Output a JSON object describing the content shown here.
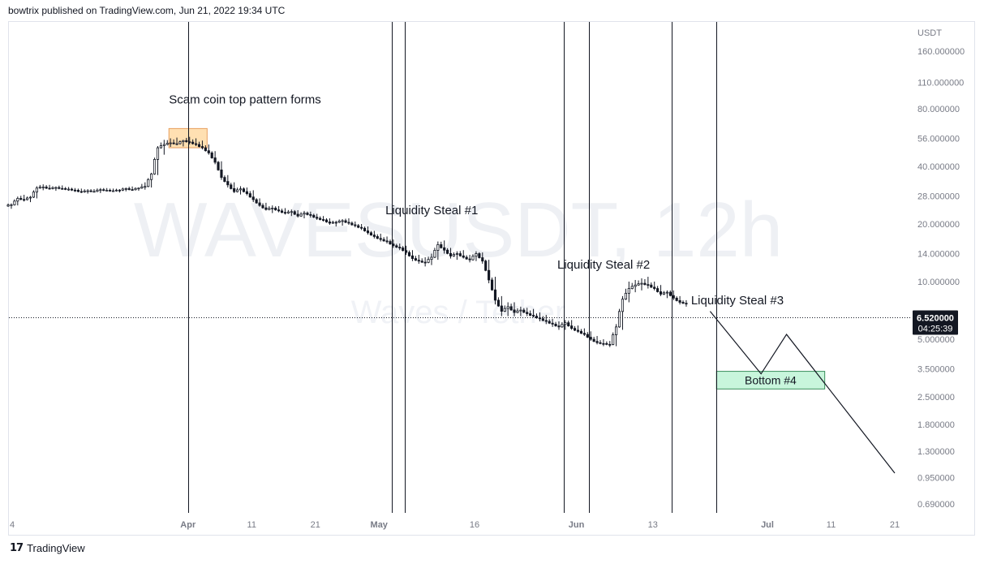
{
  "header": {
    "published": "bowtrix published on TradingView.com, Jun 21, 2022 19:34 UTC"
  },
  "footer": {
    "brand": "TradingView",
    "logo_icon": "tradingview-logo-icon"
  },
  "chart_data": {
    "type": "candlestick",
    "symbol_watermark": "WAVESUSDT, 12h",
    "sub_watermark": "Waves / Tether",
    "y_scale": "log",
    "currency_label": "USDT",
    "y_ticks": [
      {
        "label": "160.000000",
        "value": 160
      },
      {
        "label": "110.000000",
        "value": 110
      },
      {
        "label": "80.000000",
        "value": 80
      },
      {
        "label": "56.000000",
        "value": 56
      },
      {
        "label": "40.000000",
        "value": 40
      },
      {
        "label": "28.000000",
        "value": 28
      },
      {
        "label": "20.000000",
        "value": 20
      },
      {
        "label": "14.000000",
        "value": 14
      },
      {
        "label": "10.000000",
        "value": 10
      },
      {
        "label": "5.000000",
        "value": 5
      },
      {
        "label": "3.500000",
        "value": 3.5
      },
      {
        "label": "2.500000",
        "value": 2.5
      },
      {
        "label": "1.800000",
        "value": 1.8
      },
      {
        "label": "1.300000",
        "value": 1.3
      },
      {
        "label": "0.950000",
        "value": 0.95
      },
      {
        "label": "0.690000",
        "value": 0.69
      }
    ],
    "x_ticks": [
      {
        "label": "4",
        "date": "2022-03-04",
        "bold": false
      },
      {
        "label": "Apr",
        "date": "2022-04-01",
        "bold": true
      },
      {
        "label": "11",
        "date": "2022-04-11",
        "bold": false
      },
      {
        "label": "21",
        "date": "2022-04-21",
        "bold": false
      },
      {
        "label": "May",
        "date": "2022-05-01",
        "bold": true
      },
      {
        "label": "16",
        "date": "2022-05-16",
        "bold": false
      },
      {
        "label": "Jun",
        "date": "2022-06-01",
        "bold": true
      },
      {
        "label": "13",
        "date": "2022-06-13",
        "bold": false
      },
      {
        "label": "Jul",
        "date": "2022-07-01",
        "bold": true
      },
      {
        "label": "11",
        "date": "2022-07-11",
        "bold": false
      },
      {
        "label": "21",
        "date": "2022-07-21",
        "bold": false
      }
    ],
    "x_range": [
      "2022-03-04",
      "2022-07-21"
    ],
    "y_range": [
      0.62,
      200
    ],
    "last_price": {
      "label": "6.520000",
      "value": 6.52,
      "countdown": "04:25:39"
    },
    "vertical_markers": [
      "2022-04-01",
      "2022-05-03",
      "2022-05-05",
      "2022-05-30",
      "2022-06-03",
      "2022-06-16",
      "2022-06-23"
    ],
    "annotations": [
      {
        "text": "Scam coin top pattern forms",
        "date": "2022-03-29",
        "value": 85
      },
      {
        "text": "Liquidity Steal #1",
        "date": "2022-05-02",
        "value": 22.5
      },
      {
        "text": "Liquidity Steal #2",
        "date": "2022-05-29",
        "value": 11.7
      },
      {
        "text": "Liquidity Steal #3",
        "date": "2022-06-19",
        "value": 7.6
      }
    ],
    "zones": [
      {
        "label": "",
        "from": "2022-03-29",
        "to": "2022-04-04",
        "top": 63,
        "bottom": 50,
        "color": "#ffe0b2",
        "border": "#e8a060"
      },
      {
        "label": "Bottom #4",
        "from": "2022-06-23",
        "to": "2022-07-10",
        "top": 3.4,
        "bottom": 2.75,
        "color": "#c8f5dc",
        "border": "#3a8f5c"
      }
    ],
    "projection_path": [
      {
        "date": "2022-06-22",
        "value": 7.0
      },
      {
        "date": "2022-06-30",
        "value": 3.3
      },
      {
        "date": "2022-07-04",
        "value": 5.3
      },
      {
        "date": "2022-07-21",
        "value": 1.0
      }
    ],
    "candles": [
      {
        "d": "2022-03-04",
        "o": 24.8,
        "h": 25.6,
        "l": 24.0,
        "c": 25.2
      },
      {
        "d": "2022-03-05",
        "o": 25.2,
        "h": 27.8,
        "l": 25.0,
        "c": 27.2
      },
      {
        "d": "2022-03-06",
        "o": 27.2,
        "h": 28.4,
        "l": 26.2,
        "c": 26.8
      },
      {
        "d": "2022-03-07",
        "o": 26.8,
        "h": 28.0,
        "l": 26.0,
        "c": 27.6
      },
      {
        "d": "2022-03-08",
        "o": 27.6,
        "h": 31.5,
        "l": 27.2,
        "c": 30.8
      },
      {
        "d": "2022-03-09",
        "o": 30.8,
        "h": 32.2,
        "l": 30.0,
        "c": 31.2
      },
      {
        "d": "2022-03-10",
        "o": 31.2,
        "h": 32.0,
        "l": 30.2,
        "c": 30.6
      },
      {
        "d": "2022-03-11",
        "o": 30.6,
        "h": 31.4,
        "l": 29.8,
        "c": 31.0
      },
      {
        "d": "2022-03-12",
        "o": 31.0,
        "h": 31.8,
        "l": 30.2,
        "c": 30.6
      },
      {
        "d": "2022-03-13",
        "o": 30.6,
        "h": 31.2,
        "l": 29.8,
        "c": 30.4
      },
      {
        "d": "2022-03-14",
        "o": 30.4,
        "h": 30.8,
        "l": 29.4,
        "c": 30.0
      },
      {
        "d": "2022-03-15",
        "o": 30.0,
        "h": 30.6,
        "l": 29.0,
        "c": 29.4
      },
      {
        "d": "2022-03-16",
        "o": 29.4,
        "h": 30.4,
        "l": 28.8,
        "c": 29.8
      },
      {
        "d": "2022-03-17",
        "o": 29.8,
        "h": 30.4,
        "l": 29.2,
        "c": 29.6
      },
      {
        "d": "2022-03-18",
        "o": 29.6,
        "h": 30.8,
        "l": 29.0,
        "c": 30.2
      },
      {
        "d": "2022-03-19",
        "o": 30.2,
        "h": 30.8,
        "l": 29.6,
        "c": 30.0
      },
      {
        "d": "2022-03-20",
        "o": 30.0,
        "h": 30.6,
        "l": 29.4,
        "c": 29.8
      },
      {
        "d": "2022-03-21",
        "o": 29.8,
        "h": 30.4,
        "l": 29.2,
        "c": 30.0
      },
      {
        "d": "2022-03-22",
        "o": 30.0,
        "h": 31.0,
        "l": 29.6,
        "c": 30.6
      },
      {
        "d": "2022-03-23",
        "o": 30.6,
        "h": 31.4,
        "l": 30.0,
        "c": 30.2
      },
      {
        "d": "2022-03-24",
        "o": 30.2,
        "h": 31.0,
        "l": 29.8,
        "c": 30.8
      },
      {
        "d": "2022-03-25",
        "o": 30.8,
        "h": 33.0,
        "l": 30.2,
        "c": 31.4
      },
      {
        "d": "2022-03-26",
        "o": 31.4,
        "h": 37.0,
        "l": 31.0,
        "c": 36.5
      },
      {
        "d": "2022-03-27",
        "o": 36.5,
        "h": 51.0,
        "l": 36.0,
        "c": 50.0
      },
      {
        "d": "2022-03-28",
        "o": 50.0,
        "h": 55.0,
        "l": 46.0,
        "c": 52.0
      },
      {
        "d": "2022-03-29",
        "o": 52.0,
        "h": 56.0,
        "l": 50.5,
        "c": 53.0
      },
      {
        "d": "2022-03-30",
        "o": 53.0,
        "h": 56.5,
        "l": 51.5,
        "c": 52.5
      },
      {
        "d": "2022-03-31",
        "o": 52.5,
        "h": 55.0,
        "l": 50.8,
        "c": 54.5
      },
      {
        "d": "2022-04-01",
        "o": 54.5,
        "h": 57.0,
        "l": 52.0,
        "c": 53.5
      },
      {
        "d": "2022-04-02",
        "o": 53.5,
        "h": 56.0,
        "l": 51.0,
        "c": 52.0
      },
      {
        "d": "2022-04-03",
        "o": 52.0,
        "h": 54.5,
        "l": 49.0,
        "c": 50.0
      },
      {
        "d": "2022-04-04",
        "o": 50.0,
        "h": 52.0,
        "l": 46.0,
        "c": 47.0
      },
      {
        "d": "2022-04-05",
        "o": 47.0,
        "h": 48.0,
        "l": 41.0,
        "c": 42.0
      },
      {
        "d": "2022-04-06",
        "o": 42.0,
        "h": 42.5,
        "l": 34.0,
        "c": 35.0
      },
      {
        "d": "2022-04-07",
        "o": 35.0,
        "h": 36.0,
        "l": 31.0,
        "c": 32.0
      },
      {
        "d": "2022-04-08",
        "o": 32.0,
        "h": 33.0,
        "l": 29.0,
        "c": 29.5
      },
      {
        "d": "2022-04-09",
        "o": 29.5,
        "h": 31.5,
        "l": 28.5,
        "c": 30.5
      },
      {
        "d": "2022-04-10",
        "o": 30.5,
        "h": 31.0,
        "l": 28.2,
        "c": 28.8
      },
      {
        "d": "2022-04-11",
        "o": 28.8,
        "h": 30.0,
        "l": 26.0,
        "c": 26.8
      },
      {
        "d": "2022-04-12",
        "o": 26.8,
        "h": 27.2,
        "l": 24.6,
        "c": 25.0
      },
      {
        "d": "2022-04-13",
        "o": 25.0,
        "h": 25.8,
        "l": 23.5,
        "c": 23.8
      },
      {
        "d": "2022-04-14",
        "o": 23.8,
        "h": 25.0,
        "l": 22.8,
        "c": 24.2
      },
      {
        "d": "2022-04-15",
        "o": 24.2,
        "h": 24.8,
        "l": 23.0,
        "c": 23.4
      },
      {
        "d": "2022-04-16",
        "o": 23.4,
        "h": 24.2,
        "l": 22.4,
        "c": 22.8
      },
      {
        "d": "2022-04-17",
        "o": 22.8,
        "h": 23.8,
        "l": 22.0,
        "c": 23.2
      },
      {
        "d": "2022-04-18",
        "o": 23.2,
        "h": 23.6,
        "l": 21.6,
        "c": 22.0
      },
      {
        "d": "2022-04-19",
        "o": 22.0,
        "h": 23.4,
        "l": 21.4,
        "c": 22.8
      },
      {
        "d": "2022-04-20",
        "o": 22.8,
        "h": 23.2,
        "l": 21.6,
        "c": 22.2
      },
      {
        "d": "2022-04-21",
        "o": 22.2,
        "h": 22.6,
        "l": 21.0,
        "c": 21.4
      },
      {
        "d": "2022-04-22",
        "o": 21.4,
        "h": 22.0,
        "l": 20.6,
        "c": 21.0
      },
      {
        "d": "2022-04-23",
        "o": 21.0,
        "h": 21.4,
        "l": 19.8,
        "c": 20.2
      },
      {
        "d": "2022-04-24",
        "o": 20.2,
        "h": 20.8,
        "l": 19.4,
        "c": 20.4
      },
      {
        "d": "2022-04-25",
        "o": 20.4,
        "h": 21.2,
        "l": 19.6,
        "c": 20.8
      },
      {
        "d": "2022-04-26",
        "o": 20.8,
        "h": 21.4,
        "l": 19.8,
        "c": 20.2
      },
      {
        "d": "2022-04-27",
        "o": 20.2,
        "h": 20.6,
        "l": 19.2,
        "c": 19.6
      },
      {
        "d": "2022-04-28",
        "o": 19.6,
        "h": 20.0,
        "l": 18.6,
        "c": 19.0
      },
      {
        "d": "2022-04-29",
        "o": 19.0,
        "h": 19.4,
        "l": 17.6,
        "c": 18.0
      },
      {
        "d": "2022-04-30",
        "o": 18.0,
        "h": 18.4,
        "l": 16.8,
        "c": 17.2
      },
      {
        "d": "2022-05-01",
        "o": 17.2,
        "h": 17.8,
        "l": 16.2,
        "c": 16.6
      },
      {
        "d": "2022-05-02",
        "o": 16.6,
        "h": 17.2,
        "l": 15.8,
        "c": 16.2
      },
      {
        "d": "2022-05-03",
        "o": 16.2,
        "h": 16.6,
        "l": 15.0,
        "c": 15.4
      },
      {
        "d": "2022-05-04",
        "o": 15.4,
        "h": 15.8,
        "l": 14.6,
        "c": 15.0
      },
      {
        "d": "2022-05-05",
        "o": 15.0,
        "h": 15.4,
        "l": 13.8,
        "c": 14.2
      },
      {
        "d": "2022-05-06",
        "o": 14.2,
        "h": 14.6,
        "l": 12.8,
        "c": 13.2
      },
      {
        "d": "2022-05-07",
        "o": 13.2,
        "h": 13.8,
        "l": 12.4,
        "c": 12.8
      },
      {
        "d": "2022-05-08",
        "o": 12.8,
        "h": 13.4,
        "l": 12.0,
        "c": 12.6
      },
      {
        "d": "2022-05-09",
        "o": 12.6,
        "h": 14.0,
        "l": 12.2,
        "c": 13.4
      },
      {
        "d": "2022-05-10",
        "o": 13.4,
        "h": 16.2,
        "l": 13.0,
        "c": 15.6
      },
      {
        "d": "2022-05-11",
        "o": 15.6,
        "h": 16.4,
        "l": 14.0,
        "c": 14.6
      },
      {
        "d": "2022-05-12",
        "o": 14.6,
        "h": 15.0,
        "l": 13.2,
        "c": 13.6
      },
      {
        "d": "2022-05-13",
        "o": 13.6,
        "h": 14.4,
        "l": 13.0,
        "c": 14.0
      },
      {
        "d": "2022-05-14",
        "o": 14.0,
        "h": 14.6,
        "l": 13.2,
        "c": 13.4
      },
      {
        "d": "2022-05-15",
        "o": 13.4,
        "h": 13.8,
        "l": 12.6,
        "c": 13.0
      },
      {
        "d": "2022-05-16",
        "o": 13.0,
        "h": 14.4,
        "l": 12.8,
        "c": 14.0
      },
      {
        "d": "2022-05-17",
        "o": 14.0,
        "h": 14.2,
        "l": 12.4,
        "c": 12.8
      },
      {
        "d": "2022-05-18",
        "o": 12.8,
        "h": 13.0,
        "l": 9.8,
        "c": 10.2
      },
      {
        "d": "2022-05-19",
        "o": 10.2,
        "h": 10.6,
        "l": 7.6,
        "c": 8.0
      },
      {
        "d": "2022-05-20",
        "o": 8.0,
        "h": 8.4,
        "l": 6.6,
        "c": 7.0
      },
      {
        "d": "2022-05-21",
        "o": 7.0,
        "h": 7.8,
        "l": 6.6,
        "c": 7.4
      },
      {
        "d": "2022-05-22",
        "o": 7.4,
        "h": 7.8,
        "l": 6.6,
        "c": 6.9
      },
      {
        "d": "2022-05-23",
        "o": 6.9,
        "h": 7.4,
        "l": 6.6,
        "c": 7.1
      },
      {
        "d": "2022-05-24",
        "o": 7.1,
        "h": 7.3,
        "l": 6.6,
        "c": 6.8
      },
      {
        "d": "2022-05-25",
        "o": 6.8,
        "h": 7.2,
        "l": 6.5,
        "c": 6.6
      },
      {
        "d": "2022-05-26",
        "o": 6.6,
        "h": 6.9,
        "l": 6.2,
        "c": 6.4
      },
      {
        "d": "2022-05-27",
        "o": 6.4,
        "h": 6.7,
        "l": 6.0,
        "c": 6.2
      },
      {
        "d": "2022-05-28",
        "o": 6.2,
        "h": 6.4,
        "l": 5.8,
        "c": 6.0
      },
      {
        "d": "2022-05-29",
        "o": 6.0,
        "h": 6.2,
        "l": 5.6,
        "c": 5.8
      },
      {
        "d": "2022-05-30",
        "o": 5.8,
        "h": 6.3,
        "l": 5.6,
        "c": 6.1
      },
      {
        "d": "2022-05-31",
        "o": 6.1,
        "h": 6.3,
        "l": 5.6,
        "c": 5.7
      },
      {
        "d": "2022-06-01",
        "o": 5.7,
        "h": 5.9,
        "l": 5.4,
        "c": 5.5
      },
      {
        "d": "2022-06-02",
        "o": 5.5,
        "h": 5.7,
        "l": 5.2,
        "c": 5.3
      },
      {
        "d": "2022-06-03",
        "o": 5.3,
        "h": 5.5,
        "l": 4.9,
        "c": 5.0
      },
      {
        "d": "2022-06-04",
        "o": 5.0,
        "h": 5.2,
        "l": 4.7,
        "c": 4.8
      },
      {
        "d": "2022-06-05",
        "o": 4.8,
        "h": 5.0,
        "l": 4.6,
        "c": 4.75
      },
      {
        "d": "2022-06-06",
        "o": 4.75,
        "h": 4.9,
        "l": 4.55,
        "c": 4.7
      },
      {
        "d": "2022-06-07",
        "o": 4.7,
        "h": 6.0,
        "l": 4.6,
        "c": 5.8
      },
      {
        "d": "2022-06-08",
        "o": 5.8,
        "h": 8.4,
        "l": 5.6,
        "c": 8.1
      },
      {
        "d": "2022-06-09",
        "o": 8.1,
        "h": 10.0,
        "l": 7.8,
        "c": 9.2
      },
      {
        "d": "2022-06-10",
        "o": 9.2,
        "h": 10.2,
        "l": 8.8,
        "c": 9.6
      },
      {
        "d": "2022-06-11",
        "o": 9.6,
        "h": 10.4,
        "l": 9.0,
        "c": 9.8
      },
      {
        "d": "2022-06-12",
        "o": 9.8,
        "h": 10.6,
        "l": 9.2,
        "c": 9.6
      },
      {
        "d": "2022-06-13",
        "o": 9.6,
        "h": 10.0,
        "l": 9.0,
        "c": 9.2
      },
      {
        "d": "2022-06-14",
        "o": 9.2,
        "h": 9.6,
        "l": 8.4,
        "c": 8.6
      },
      {
        "d": "2022-06-15",
        "o": 8.6,
        "h": 9.0,
        "l": 8.2,
        "c": 8.8
      },
      {
        "d": "2022-06-16",
        "o": 8.8,
        "h": 9.0,
        "l": 8.0,
        "c": 8.2
      },
      {
        "d": "2022-06-17",
        "o": 8.2,
        "h": 8.4,
        "l": 7.6,
        "c": 7.8
      },
      {
        "d": "2022-06-18",
        "o": 7.8,
        "h": 8.0,
        "l": 7.4,
        "c": 7.7
      }
    ]
  }
}
